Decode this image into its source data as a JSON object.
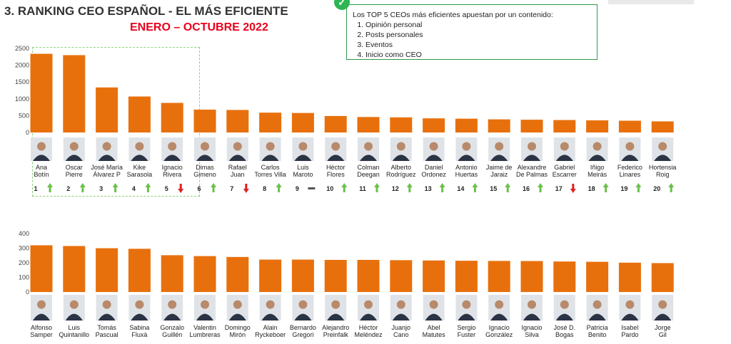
{
  "header": {
    "title": "3. RANKING CEO ESPAÑOL - EL MÁS EFICIENTE",
    "subtitle": "ENERO – OCTUBRE 2022"
  },
  "note": {
    "intro": "Los TOP 5 CEOs más eficientes apuestan por un contenido:",
    "items": [
      "Opinión personal",
      "Posts personales",
      "Eventos",
      "Inicio como CEO"
    ]
  },
  "colors": {
    "bar": "#e8700c",
    "up": "#6cc04a",
    "down": "#e02020",
    "title_red": "#e8001c"
  },
  "chart_data": [
    {
      "type": "bar",
      "title": "",
      "xlabel": "",
      "ylabel": "",
      "ylim": [
        0,
        2500
      ],
      "yticks": [
        0,
        500,
        1000,
        1500,
        2000,
        2500
      ],
      "grid": false,
      "categories": [
        [
          "Ana",
          "Botín"
        ],
        [
          "Oscar",
          "Pierre"
        ],
        [
          "José María",
          "Álvarez P"
        ],
        [
          "Kike",
          "Sarasola"
        ],
        [
          "Ignacio",
          "Rivera"
        ],
        [
          "Dimas",
          "Gimeno"
        ],
        [
          "Rafael",
          "Juan"
        ],
        [
          "Carlos",
          "Torres Villa"
        ],
        [
          "Luis",
          "Maroto"
        ],
        [
          "Héctor",
          "Flores"
        ],
        [
          "Colman",
          "Deegan"
        ],
        [
          "Alberto",
          "Rodríguez"
        ],
        [
          "Daniel",
          "Ordonez"
        ],
        [
          "Antonio",
          "Huertas"
        ],
        [
          "Jaime de",
          "Jaraiz"
        ],
        [
          "Alexandre",
          "De Palmas"
        ],
        [
          "Gabriel",
          "Escarrer"
        ],
        [
          "Iñigo",
          "Meirás"
        ],
        [
          "Federico",
          "Linares"
        ],
        [
          "Hortensia",
          "Roig"
        ]
      ],
      "values": [
        2340,
        2300,
        1340,
        1070,
        880,
        680,
        670,
        590,
        580,
        490,
        460,
        450,
        420,
        410,
        390,
        380,
        370,
        360,
        350,
        330
      ],
      "ranks": [
        "1",
        "2",
        "3",
        "4",
        "5",
        "6",
        "7",
        "8",
        "9",
        "10",
        "11",
        "12",
        "13",
        "14",
        "15",
        "16",
        "17",
        "18",
        "19",
        "20"
      ],
      "trend": [
        "up",
        "up",
        "up",
        "up",
        "down",
        "up",
        "down",
        "up",
        "same",
        "up",
        "up",
        "up",
        "up",
        "up",
        "up",
        "up",
        "down",
        "up",
        "up",
        "up"
      ]
    },
    {
      "type": "bar",
      "title": "",
      "xlabel": "",
      "ylabel": "",
      "ylim": [
        0,
        400
      ],
      "yticks": [
        0,
        100,
        200,
        300,
        400
      ],
      "grid": false,
      "categories": [
        [
          "Alfonso",
          "Samper"
        ],
        [
          "Luis",
          "Quintanillo"
        ],
        [
          "Tomás",
          "Pascual"
        ],
        [
          "Sabina",
          "Fluxà"
        ],
        [
          "Gonzalo",
          "Guillén"
        ],
        [
          "Valentin",
          "Lumbreras"
        ],
        [
          "Domingo",
          "Mirón"
        ],
        [
          "Alain",
          "Ryckeboer"
        ],
        [
          "Bernardo",
          "Gregori"
        ],
        [
          "Alejandro",
          "Preinfalk"
        ],
        [
          "Héctor",
          "Meléndez"
        ],
        [
          "Juanjo",
          "Cano"
        ],
        [
          "Abel",
          "Matutes"
        ],
        [
          "Sergio",
          "Fuster"
        ],
        [
          "Ignacio",
          "González"
        ],
        [
          "Ignacio",
          "Silva"
        ],
        [
          "José D.",
          "Bogas"
        ],
        [
          "Patricia",
          "Benito"
        ],
        [
          "Isabel",
          "Pardo"
        ],
        [
          "Jorge",
          "Gil"
        ]
      ],
      "values": [
        320,
        315,
        300,
        296,
        252,
        246,
        240,
        222,
        222,
        220,
        220,
        218,
        216,
        214,
        213,
        212,
        209,
        207,
        201,
        198
      ]
    }
  ]
}
